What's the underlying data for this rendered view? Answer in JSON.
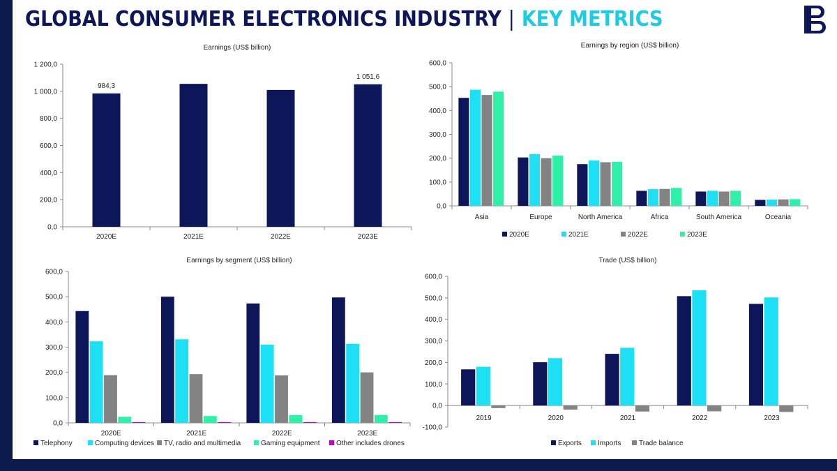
{
  "header": {
    "title_main": "GLOBAL CONSUMER ELECTRONICS INDUSTRY",
    "separator": "|",
    "title_accent": "KEY METRICS"
  },
  "logo": {
    "icon": "brand-b-logo-icon"
  },
  "colors": {
    "navy": "#0d1659",
    "cyan": "#1ee0f5",
    "gray": "#838383",
    "green": "#2ef0a8",
    "magenta": "#c000c8",
    "frame": "#0d1b4c",
    "accent": "#1ecbe1"
  },
  "chart_data": [
    {
      "id": "earnings",
      "type": "bar",
      "title": "Earnings (US$ billion)",
      "categories": [
        "2020E",
        "2021E",
        "2022E",
        "2023E"
      ],
      "series": [
        {
          "name": "Earnings",
          "values": [
            984.3,
            1055,
            1010,
            1051.6
          ]
        }
      ],
      "data_labels": [
        "984,3",
        null,
        null,
        "1 051,6"
      ],
      "yticks": [
        "0,0",
        "200,0",
        "400,0",
        "600,0",
        "800,0",
        "1 000,0",
        "1 200,0"
      ],
      "ylim": [
        0,
        1200
      ]
    },
    {
      "id": "region",
      "type": "bar",
      "title": "Earnings by region (US$ billion)",
      "categories": [
        "Asia",
        "Europe",
        "North America",
        "Africa",
        "South America",
        "Oceania"
      ],
      "series": [
        {
          "name": "2020E",
          "values": [
            453,
            203,
            175,
            63,
            60,
            25
          ]
        },
        {
          "name": "2021E",
          "values": [
            487,
            217,
            190,
            70,
            63,
            26
          ]
        },
        {
          "name": "2022E",
          "values": [
            465,
            200,
            183,
            71,
            60,
            27
          ]
        },
        {
          "name": "2023E",
          "values": [
            479,
            211,
            185,
            75,
            63,
            28
          ]
        }
      ],
      "yticks": [
        "0,0",
        "100,0",
        "200,0",
        "300,0",
        "400,0",
        "500,0",
        "600,0"
      ],
      "ylim": [
        0,
        600
      ],
      "legend": "bottom"
    },
    {
      "id": "segment",
      "type": "bar",
      "title": "Earnings by segment (US$ billion)",
      "categories": [
        "2020E",
        "2021E",
        "2022E",
        "2023E"
      ],
      "series": [
        {
          "name": "Telephony",
          "values": [
            443,
            500,
            473,
            497
          ]
        },
        {
          "name": "Computing devices",
          "values": [
            323,
            331,
            310,
            313
          ]
        },
        {
          "name": "TV, radio and multimedia",
          "values": [
            189,
            193,
            188,
            200
          ]
        },
        {
          "name": "Gaming equipment",
          "values": [
            24,
            27,
            31,
            31
          ]
        },
        {
          "name": "Other includes drones",
          "values": [
            3,
            3,
            3,
            3
          ]
        }
      ],
      "yticks": [
        "0,0",
        "100,0",
        "200,0",
        "300,0",
        "400,0",
        "500,0",
        "600,0"
      ],
      "ylim": [
        0,
        600
      ],
      "legend": "bottom"
    },
    {
      "id": "trade",
      "type": "bar",
      "title": "Trade (US$ billion)",
      "categories": [
        "2019",
        "2020",
        "2021",
        "2022",
        "2023"
      ],
      "series": [
        {
          "name": "Exports",
          "values": [
            168,
            201,
            240,
            508,
            472
          ]
        },
        {
          "name": "Imports",
          "values": [
            180,
            220,
            268,
            535,
            502
          ]
        },
        {
          "name": "Trade balance",
          "values": [
            -12,
            -19,
            -28,
            -27,
            -30
          ]
        }
      ],
      "yticks": [
        "-100,0",
        "0,0",
        "100,0",
        "200,0",
        "300,0",
        "400,0",
        "500,0",
        "600,0"
      ],
      "ylim": [
        -100,
        600
      ],
      "legend": "bottom"
    }
  ]
}
